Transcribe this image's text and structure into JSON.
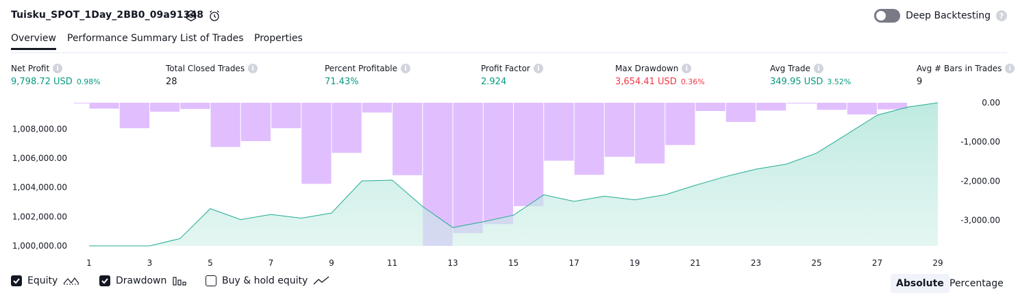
{
  "header": {
    "title": "Tuisku_SPOT_1Day_2BB0_09a91348",
    "deep_backtesting_label": "Deep Backtesting",
    "help_glyph": "?"
  },
  "tabs": [
    "Overview",
    "Performance Summary",
    "List of Trades",
    "Properties"
  ],
  "metrics": [
    {
      "label": "Net Profit",
      "value": "9,798.72 USD",
      "pct": "0.98%",
      "color": "green"
    },
    {
      "label": "Total Closed Trades",
      "value": "28",
      "pct": "",
      "color": "dark"
    },
    {
      "label": "Percent Profitable",
      "value": "71.43%",
      "pct": "",
      "color": "green"
    },
    {
      "label": "Profit Factor",
      "value": "2.924",
      "pct": "",
      "color": "green"
    },
    {
      "label": "Max Drawdown",
      "value": "3,654.41 USD",
      "pct": "0.36%",
      "color": "red"
    },
    {
      "label": "Avg Trade",
      "value": "349.95 USD",
      "pct": "3.52%",
      "color": "green"
    },
    {
      "label": "Avg # Bars in Trades",
      "value": "9",
      "pct": "",
      "color": "dark"
    }
  ],
  "legend": {
    "equity": "Equity",
    "drawdown": "Drawdown",
    "buy_hold": "Buy & hold equity"
  },
  "view_buttons": {
    "absolute": "Absolute",
    "percentage": "Percentage"
  },
  "colors": {
    "equity_line": "#22ab94",
    "equity_fill": "#cdeee7",
    "drawdown_bar": "#e1bfff",
    "profit": "#089981",
    "loss": "#f23645"
  },
  "chart_data": {
    "type": "area",
    "x": [
      1,
      2,
      3,
      4,
      5,
      6,
      7,
      8,
      9,
      10,
      11,
      12,
      13,
      14,
      15,
      16,
      17,
      18,
      19,
      20,
      21,
      22,
      23,
      24,
      25,
      26,
      27,
      28,
      29
    ],
    "x_ticks": [
      1,
      3,
      5,
      7,
      9,
      11,
      13,
      15,
      17,
      19,
      21,
      23,
      25,
      27,
      29
    ],
    "series": [
      {
        "name": "Equity",
        "type": "line",
        "axis": "left",
        "values": [
          1000000,
          1000000,
          1000000,
          1000500,
          1002550,
          1001800,
          1002150,
          1001900,
          1002250,
          1004450,
          1004500,
          1002700,
          1001250,
          1001650,
          1002100,
          1003500,
          1003050,
          1003400,
          1003150,
          1003500,
          1004150,
          1004750,
          1005250,
          1005600,
          1006350,
          1007650,
          1008950,
          1009500,
          1009800
        ]
      },
      {
        "name": "Drawdown",
        "type": "bar",
        "axis": "right",
        "values": [
          -10,
          -150,
          -650,
          -230,
          -160,
          -1130,
          -980,
          -650,
          -2070,
          -1280,
          -250,
          -1850,
          -3654,
          -3330,
          -3100,
          -2640,
          -1480,
          -1840,
          -1380,
          -1550,
          -1080,
          -210,
          -490,
          -200,
          -20,
          -180,
          -300,
          -170,
          0
        ]
      }
    ],
    "y_left": {
      "ticks": [
        "1,000,000.00",
        "1,002,000.00",
        "1,004,000.00",
        "1,006,000.00",
        "1,008,000.00"
      ],
      "range": [
        1000000,
        1009800
      ]
    },
    "y_right": {
      "ticks": [
        "0.00",
        "-1,000.00",
        "-2,000.00",
        "-3,000.00"
      ],
      "range": [
        -3654.41,
        0
      ]
    },
    "grid": false
  }
}
